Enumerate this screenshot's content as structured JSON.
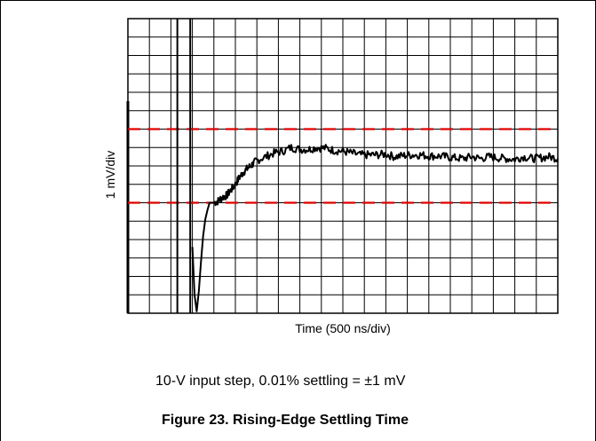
{
  "chart_data": {
    "type": "line",
    "title": "",
    "xlabel": "Time (500 ns/div)",
    "ylabel": "1 mV/div",
    "x_divisions": 10,
    "y_divisions": 8,
    "xlim_div": [
      0,
      10
    ],
    "ylim_div": [
      -4,
      4
    ],
    "grid": true,
    "reference_lines": {
      "upper_div": 1,
      "lower_div": -1,
      "style": "dashed",
      "color": "#e00000"
    },
    "trigger_markers_div": [
      1.15,
      1.45
    ],
    "series": [
      {
        "x_div": [
          1.5,
          1.55,
          1.6,
          1.65,
          1.7,
          1.75,
          1.8,
          1.85,
          1.9,
          2.0,
          2.1,
          2.2,
          2.3,
          2.4,
          2.5,
          2.6,
          2.7,
          2.8,
          2.9,
          3.0,
          3.2,
          3.4,
          3.6,
          3.8,
          4.0,
          4.2,
          4.4,
          4.6,
          4.8,
          5.0,
          5.2,
          5.4,
          5.6,
          5.8,
          6.0,
          6.2,
          6.4,
          6.6,
          6.8,
          7.0,
          7.2,
          7.4,
          7.6,
          7.8,
          8.0,
          8.2,
          8.4,
          8.6,
          8.8,
          9.0,
          9.2,
          9.4,
          9.6,
          9.8,
          10.0
        ],
        "y_mv": [
          -2.2,
          -3.5,
          -3.95,
          -3.4,
          -2.6,
          -1.9,
          -1.45,
          -1.2,
          -1.0,
          -1.0,
          -0.95,
          -0.85,
          -0.8,
          -0.65,
          -0.5,
          -0.3,
          -0.15,
          -0.05,
          0.05,
          0.15,
          0.25,
          0.35,
          0.4,
          0.5,
          0.45,
          0.45,
          0.5,
          0.48,
          0.42,
          0.4,
          0.35,
          0.3,
          0.3,
          0.3,
          0.32,
          0.25,
          0.28,
          0.3,
          0.3,
          0.27,
          0.27,
          0.25,
          0.22,
          0.2,
          0.25,
          0.2,
          0.25,
          0.22,
          0.2,
          0.18,
          0.25,
          0.2,
          0.22,
          0.25,
          0.2
        ],
        "color": "#000000"
      }
    ]
  },
  "caption": {
    "note": "10-V input step, 0.01% settling = ±1 mV",
    "figure_title": "Figure 23. Rising-Edge Settling Time"
  }
}
